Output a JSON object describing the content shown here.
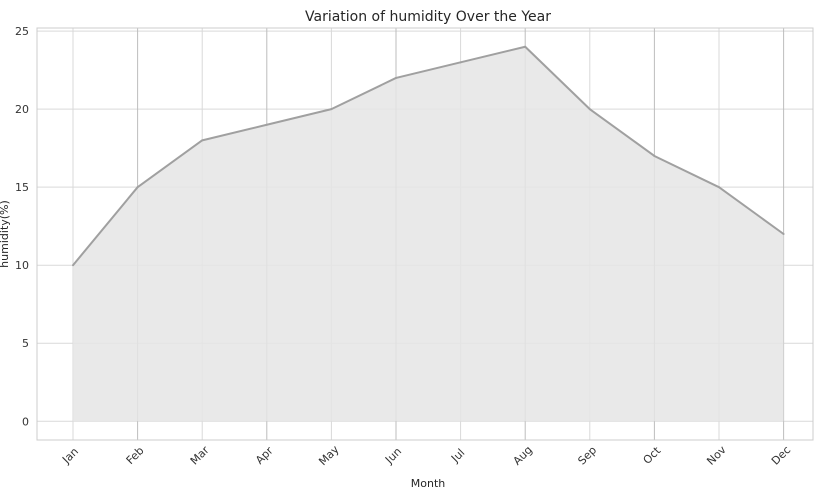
{
  "chart_data": {
    "type": "area",
    "title": "Variation of humidity Over the Year",
    "xlabel": "Month",
    "ylabel": "humidity(%)",
    "categories": [
      "Jan",
      "Feb",
      "Mar",
      "Apr",
      "May",
      "Jun",
      "Jul",
      "Aug",
      "Sep",
      "Oct",
      "Nov",
      "Dec"
    ],
    "series": [
      {
        "values": [
          10,
          15,
          18,
          19,
          20,
          22,
          23,
          24,
          20,
          17,
          15,
          12
        ]
      }
    ],
    "ylim": [
      -1.2,
      25.2
    ],
    "yticks": [
      0,
      5,
      10,
      15,
      20,
      25
    ],
    "grid": true,
    "colors": {
      "line": "#a0a0a0",
      "fill": "#e5e5e5"
    }
  }
}
